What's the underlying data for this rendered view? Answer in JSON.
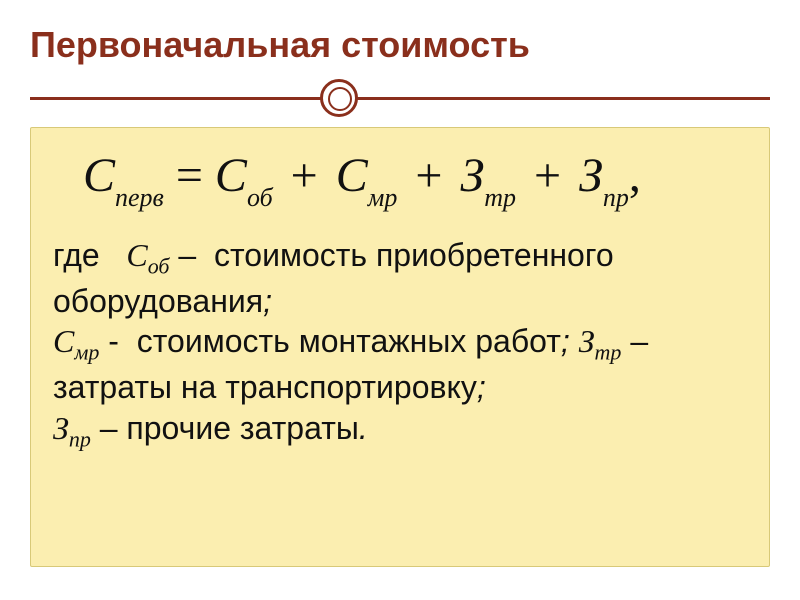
{
  "colors": {
    "accent": "#8a2f1c",
    "content_bg": "#fbeeb0",
    "content_border": "#d8c978",
    "text": "#111111",
    "page_bg": "#ffffff"
  },
  "typography": {
    "title_font": "Arial",
    "title_weight": 700,
    "title_size_pt": 27,
    "body_font": "Arial",
    "body_size_pt": 24,
    "formula_font": "Times New Roman",
    "formula_style": "italic",
    "formula_size_pt": 36,
    "subscript_size_pt": 20
  },
  "title": "Первоначальная стоимость",
  "formula": {
    "lhs": {
      "var": "С",
      "sub": "перв"
    },
    "rhs": [
      {
        "var": "С",
        "sub": "об"
      },
      {
        "var": "С",
        "sub": "мр"
      },
      {
        "var": "З",
        "sub": "тр"
      },
      {
        "var": "З",
        "sub": "пр"
      }
    ],
    "trailing": ","
  },
  "defs": {
    "lead": "где",
    "items": [
      {
        "var": "С",
        "sub": "об",
        "sep": "–",
        "text": "стоимость приобретенного оборудования",
        "term": ";"
      },
      {
        "var": "С",
        "sub": "мр",
        "sep": "-",
        "text": "стоимость монтажных работ",
        "term": ";"
      },
      {
        "var": "З",
        "sub": "тр",
        "sep": "–",
        "text": "затраты на транспортировку",
        "term": ";"
      },
      {
        "var": "З",
        "sub": "пр",
        "sep": "–",
        "text": "прочие затраты",
        "term": "."
      }
    ]
  }
}
